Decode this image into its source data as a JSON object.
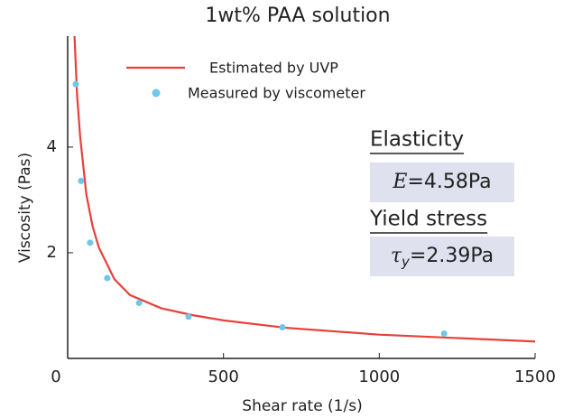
{
  "chart_data": {
    "type": "line_scatter",
    "title": "1wt% PAA solution",
    "xlabel": "Shear rate (1/s)",
    "ylabel": "Viscosity (Pas)",
    "xlim": [
      0,
      1500
    ],
    "xticks": [
      0,
      500,
      1000,
      1500
    ],
    "ylim": [
      0,
      6.1
    ],
    "yticks": [
      2,
      4
    ],
    "series": [
      {
        "name": "Estimated by UVP",
        "kind": "line",
        "color": "#e8403a",
        "x": [
          22,
          30,
          40,
          60,
          80,
          100,
          150,
          200,
          300,
          400,
          500,
          700,
          1000,
          1500
        ],
        "values": [
          6.1,
          5.0,
          4.2,
          3.1,
          2.5,
          2.1,
          1.5,
          1.2,
          0.95,
          0.82,
          0.72,
          0.58,
          0.45,
          0.32
        ]
      },
      {
        "name": "Measured by viscometer",
        "kind": "scatter",
        "color": "#6fc6ea",
        "x": [
          26,
          43,
          72,
          127,
          229,
          388,
          689,
          1208
        ],
        "values": [
          5.19,
          3.36,
          2.19,
          1.52,
          1.05,
          0.79,
          0.59,
          0.47
        ]
      }
    ],
    "annotations": [
      {
        "heading": "Elasticity",
        "symbol": "E",
        "text": "=4.58Pa"
      },
      {
        "heading": "Yield stress",
        "symbol": "τ",
        "subscript": "y",
        "text": "=2.39Pa"
      }
    ]
  }
}
